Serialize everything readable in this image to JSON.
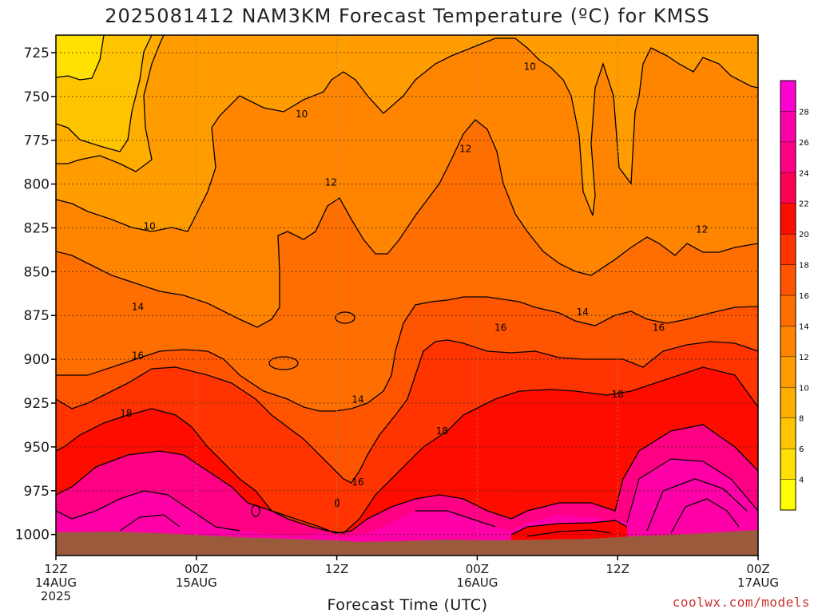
{
  "chart_data": {
    "type": "heatmap",
    "title": "2025081412 NAM3KM Forecast Temperature (ºC) for KMSS",
    "xlabel": "Forecast Time (UTC)",
    "ylabel": "",
    "y_axis": {
      "reversed": true,
      "ylim": [
        1012,
        715
      ],
      "ticks": [
        725,
        750,
        775,
        800,
        825,
        850,
        875,
        900,
        925,
        950,
        975,
        1000
      ]
    },
    "x_axis": {
      "range_hours": [
        0,
        60
      ],
      "ticks": [
        {
          "hour": 0,
          "line1": "12Z",
          "line2": "14AUG",
          "line3": "2025"
        },
        {
          "hour": 12,
          "line1": "00Z",
          "line2": "15AUG",
          "line3": ""
        },
        {
          "hour": 24,
          "line1": "12Z",
          "line2": "",
          "line3": ""
        },
        {
          "hour": 36,
          "line1": "00Z",
          "line2": "16AUG",
          "line3": ""
        },
        {
          "hour": 48,
          "line1": "12Z",
          "line2": "",
          "line3": ""
        },
        {
          "hour": 60,
          "line1": "00Z",
          "line2": "17AUG",
          "line3": ""
        }
      ]
    },
    "grid": true,
    "colorbar": {
      "labels": [
        "4",
        "6",
        "8",
        "10",
        "12",
        "14",
        "16",
        "18",
        "20",
        "22",
        "24",
        "26",
        "28"
      ],
      "colors": [
        "#ffff00",
        "#ffe000",
        "#ffc400",
        "#ffae00",
        "#ff9c00",
        "#ff8400",
        "#ff6e00",
        "#ff5400",
        "#ff3400",
        "#ff0c00",
        "#ff0050",
        "#ff0084",
        "#ff00a8",
        "#ff00d0"
      ]
    },
    "contour_labels": [
      {
        "text": "10",
        "h": 40.5,
        "p": 733
      },
      {
        "text": "10",
        "h": 21.0,
        "p": 760
      },
      {
        "text": "10",
        "h": 8.0,
        "p": 824
      },
      {
        "text": "12",
        "h": 35.0,
        "p": 780
      },
      {
        "text": "12",
        "h": 23.5,
        "p": 799
      },
      {
        "text": "12",
        "h": 55.2,
        "p": 826
      },
      {
        "text": "14",
        "h": 7.0,
        "p": 870
      },
      {
        "text": "14",
        "h": 45.0,
        "p": 873
      },
      {
        "text": "14",
        "h": 25.8,
        "p": 923
      },
      {
        "text": "16",
        "h": 7.0,
        "p": 898
      },
      {
        "text": "16",
        "h": 38.0,
        "p": 882
      },
      {
        "text": "16",
        "h": 51.5,
        "p": 882
      },
      {
        "text": "16",
        "h": 25.8,
        "p": 970
      },
      {
        "text": "18",
        "h": 6.0,
        "p": 931
      },
      {
        "text": "18",
        "h": 33.0,
        "p": 941
      },
      {
        "text": "18",
        "h": 48.0,
        "p": 920
      }
    ],
    "terrain_color": "#9c5a3c"
  },
  "credit": "coolwx.com/models"
}
